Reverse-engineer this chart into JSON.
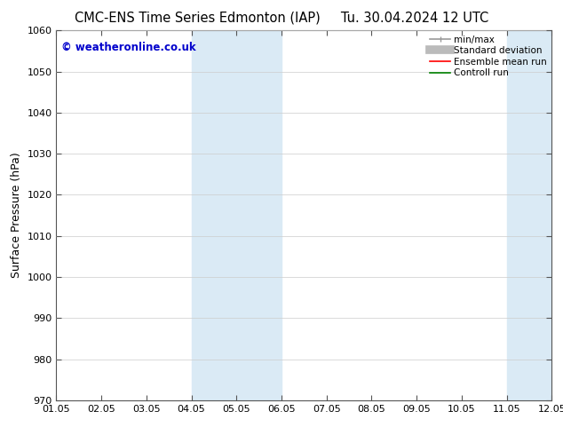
{
  "title_left": "CMC-ENS Time Series Edmonton (IAP)",
  "title_right": "Tu. 30.04.2024 12 UTC",
  "ylabel": "Surface Pressure (hPa)",
  "ylim": [
    970,
    1060
  ],
  "yticks": [
    970,
    980,
    990,
    1000,
    1010,
    1020,
    1030,
    1040,
    1050,
    1060
  ],
  "xlim_min": 0,
  "xlim_max": 11,
  "xtick_labels": [
    "01.05",
    "02.05",
    "03.05",
    "04.05",
    "05.05",
    "06.05",
    "07.05",
    "08.05",
    "09.05",
    "10.05",
    "11.05",
    "12.05"
  ],
  "xtick_positions": [
    0,
    1,
    2,
    3,
    4,
    5,
    6,
    7,
    8,
    9,
    10,
    11
  ],
  "shaded_bands": [
    {
      "xmin": 3,
      "xmax": 5,
      "color": "#daeaf5"
    },
    {
      "xmin": 10,
      "xmax": 11.5,
      "color": "#daeaf5"
    }
  ],
  "watermark_text": "© weatheronline.co.uk",
  "watermark_color": "#0000cc",
  "legend_entries": [
    {
      "label": "min/max",
      "color": "#999999",
      "lw": 1.2,
      "style": "minmax"
    },
    {
      "label": "Standard deviation",
      "color": "#bbbbbb",
      "lw": 7,
      "style": "thick"
    },
    {
      "label": "Ensemble mean run",
      "color": "#ff0000",
      "lw": 1.2,
      "style": "line"
    },
    {
      "label": "Controll run",
      "color": "#008000",
      "lw": 1.2,
      "style": "line"
    }
  ],
  "bg_color": "#ffffff",
  "grid_color": "#cccccc",
  "spine_color": "#555555",
  "title_fontsize": 10.5,
  "label_fontsize": 9,
  "tick_fontsize": 8
}
